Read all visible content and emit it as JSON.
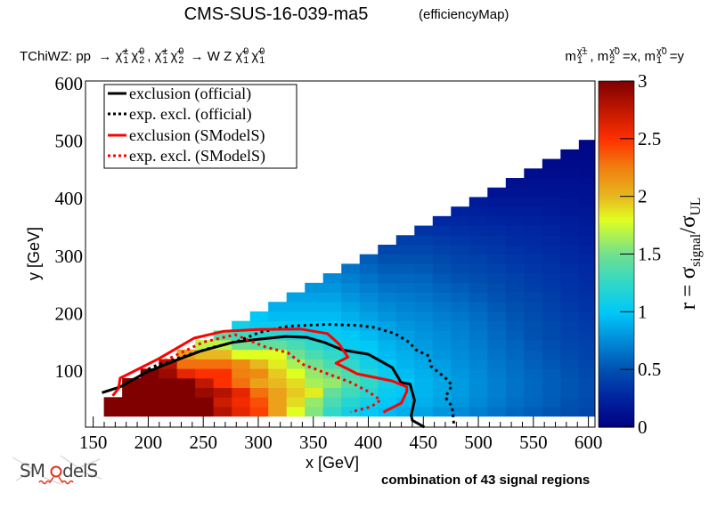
{
  "title": "CMS-SUS-16-039-ma5",
  "subtitle": "(efficiencyMap)",
  "process_label": [
    {
      "text": "TChiWZ: pp  → "
    },
    {
      "base": "χ̃",
      "sup": "±",
      "sub": "1"
    },
    {
      "base": "χ̃",
      "sup": "0",
      "sub": "2"
    },
    {
      "text": ", "
    },
    {
      "base": "χ̃",
      "sup": "±",
      "sub": "1"
    },
    {
      "base": "χ̃",
      "sup": "0",
      "sub": "2"
    },
    {
      "text": " → W Z "
    },
    {
      "base": "χ̃",
      "sup": "0",
      "sub": "1"
    },
    {
      "base": "χ̃",
      "sup": "0",
      "sub": "1"
    }
  ],
  "mass_label": [
    {
      "text": "m"
    },
    {
      "base": "",
      "sup": "χ̃±",
      "sub": "1"
    },
    {
      "text": ", m"
    },
    {
      "base": "",
      "sup": "χ̃0",
      "sub": "2"
    },
    {
      "text": "=x, m"
    },
    {
      "base": "",
      "sup": "χ̃0",
      "sub": "1"
    },
    {
      "text": "=y"
    }
  ],
  "footer": "combination of 43 signal regions",
  "logo_text": "SModelS",
  "chart_data": {
    "type": "heatmap",
    "xlabel": "x [GeV]",
    "ylabel": "y [GeV]",
    "zlabel": {
      "main": "r = σ",
      "sub1": "signal",
      "mid": "/σ",
      "sub2": "UL"
    },
    "xlim": [
      143,
      606
    ],
    "ylim": [
      2,
      605
    ],
    "zlim": [
      0,
      3
    ],
    "x_ticks": [
      "150",
      "200",
      "250",
      "300",
      "350",
      "400",
      "450",
      "500",
      "550",
      "600"
    ],
    "y_ticks": [
      "100",
      "200",
      "300",
      "400",
      "500",
      "600"
    ],
    "z_ticks": [
      "0",
      "0.5",
      "1",
      "1.5",
      "2",
      "2.5",
      "3"
    ],
    "palette_stops": [
      [
        0,
        "#000080"
      ],
      [
        0.25,
        "#0022a0"
      ],
      [
        0.5,
        "#0050b0"
      ],
      [
        0.75,
        "#008ad8"
      ],
      [
        1.0,
        "#00c8f8"
      ],
      [
        1.25,
        "#30d8c8"
      ],
      [
        1.5,
        "#70e090"
      ],
      [
        1.8,
        "#e0ff20"
      ],
      [
        2.0,
        "#e8b820"
      ],
      [
        2.25,
        "#f08010"
      ],
      [
        2.5,
        "#ff3000"
      ],
      [
        2.75,
        "#c01800"
      ],
      [
        3.0,
        "#800000"
      ]
    ],
    "bin_width": 16.6,
    "x_centers": [
      168,
      184.6,
      201.2,
      217.8,
      234.4,
      251,
      267.6,
      284.2,
      300.8,
      317.4,
      334,
      350.6,
      367.2,
      383.8,
      400.4,
      417,
      433.6,
      450.2,
      466.8,
      483.4,
      500,
      516.6,
      533.2,
      549.8,
      566.4,
      583,
      599.6
    ],
    "y_centers": [
      29.3,
      45.9,
      62.5,
      79.1,
      95.7,
      112.3,
      128.9,
      145.5,
      162.1,
      178.7,
      195.3,
      211.9,
      228.5,
      245.1,
      261.7,
      278.3,
      294.9,
      311.5,
      328.1,
      344.7,
      361.3,
      377.9,
      394.5,
      411.1,
      427.7,
      444.3,
      460.9,
      477.5,
      494.1
    ],
    "values_by_column": [
      [
        3.5,
        3.5
      ],
      [
        3.5,
        3.5,
        3.5,
        3.4
      ],
      [
        3.5,
        3.5,
        3.5,
        3.3,
        3.0
      ],
      [
        3.5,
        3.5,
        3.4,
        3.2,
        2.9,
        2.8
      ],
      [
        3.3,
        3.3,
        3.2,
        3.0,
        2.6,
        2.3,
        2.1
      ],
      [
        3.1,
        3.0,
        2.9,
        2.75,
        2.5,
        2.3,
        2.0,
        1.7
      ],
      [
        2.8,
        2.7,
        2.8,
        2.5,
        2.5,
        2.3,
        2.0,
        1.7,
        1.4
      ],
      [
        2.6,
        2.55,
        2.6,
        2.3,
        2.25,
        2.2,
        1.8,
        1.5,
        1.3,
        1.1
      ],
      [
        2.45,
        2.4,
        2.3,
        2.1,
        2.2,
        2.0,
        1.8,
        1.45,
        1.2,
        1.05,
        1.0
      ],
      [
        2.1,
        2.1,
        2.1,
        2.0,
        1.95,
        1.85,
        1.8,
        1.45,
        1.2,
        1.05,
        0.95,
        0.9
      ],
      [
        1.8,
        1.9,
        1.95,
        1.9,
        1.8,
        1.65,
        1.5,
        1.35,
        1.15,
        1.0,
        0.95,
        0.9,
        0.85
      ],
      [
        1.55,
        1.6,
        1.85,
        1.65,
        1.6,
        1.5,
        1.35,
        1.25,
        1.1,
        1.0,
        0.95,
        0.9,
        0.85,
        0.8
      ],
      [
        1.25,
        1.35,
        1.45,
        1.6,
        1.5,
        1.35,
        1.25,
        1.15,
        1.05,
        1.0,
        0.95,
        0.9,
        0.85,
        0.8,
        0.75
      ],
      [
        1.1,
        1.2,
        1.3,
        1.4,
        1.35,
        1.25,
        1.15,
        1.05,
        1.0,
        0.95,
        0.9,
        0.85,
        0.8,
        0.75,
        0.7,
        0.65
      ],
      [
        1.0,
        1.1,
        1.2,
        1.25,
        1.2,
        1.1,
        1.05,
        1.0,
        0.95,
        0.9,
        0.85,
        0.8,
        0.75,
        0.7,
        0.65,
        0.6,
        0.55
      ],
      [
        0.95,
        1.0,
        1.05,
        1.1,
        1.05,
        1.0,
        0.95,
        0.92,
        0.88,
        0.85,
        0.8,
        0.75,
        0.7,
        0.65,
        0.6,
        0.55,
        0.5,
        0.45
      ],
      [
        0.9,
        0.95,
        1.0,
        1.0,
        0.95,
        0.92,
        0.9,
        0.87,
        0.84,
        0.8,
        0.76,
        0.72,
        0.68,
        0.64,
        0.6,
        0.55,
        0.5,
        0.45,
        0.4
      ],
      [
        0.85,
        0.9,
        0.92,
        0.92,
        0.9,
        0.88,
        0.85,
        0.82,
        0.8,
        0.77,
        0.74,
        0.7,
        0.66,
        0.62,
        0.58,
        0.54,
        0.5,
        0.45,
        0.4,
        0.35
      ],
      [
        0.8,
        0.85,
        0.87,
        0.87,
        0.85,
        0.83,
        0.8,
        0.78,
        0.76,
        0.73,
        0.7,
        0.66,
        0.62,
        0.58,
        0.54,
        0.5,
        0.46,
        0.42,
        0.38,
        0.33,
        0.28
      ],
      [
        0.75,
        0.8,
        0.82,
        0.82,
        0.8,
        0.78,
        0.76,
        0.74,
        0.72,
        0.7,
        0.67,
        0.63,
        0.59,
        0.55,
        0.51,
        0.47,
        0.43,
        0.4,
        0.36,
        0.32,
        0.28,
        0.24
      ],
      [
        0.7,
        0.74,
        0.76,
        0.76,
        0.75,
        0.73,
        0.71,
        0.69,
        0.67,
        0.65,
        0.62,
        0.59,
        0.55,
        0.52,
        0.48,
        0.45,
        0.42,
        0.38,
        0.35,
        0.31,
        0.27,
        0.23,
        0.2
      ],
      [
        0.65,
        0.68,
        0.7,
        0.7,
        0.69,
        0.67,
        0.65,
        0.63,
        0.61,
        0.59,
        0.57,
        0.54,
        0.51,
        0.48,
        0.45,
        0.42,
        0.39,
        0.36,
        0.33,
        0.3,
        0.26,
        0.22,
        0.18,
        0.15
      ],
      [
        0.6,
        0.63,
        0.65,
        0.65,
        0.64,
        0.62,
        0.6,
        0.58,
        0.56,
        0.54,
        0.52,
        0.5,
        0.47,
        0.44,
        0.42,
        0.39,
        0.36,
        0.33,
        0.3,
        0.28,
        0.25,
        0.21,
        0.18,
        0.15,
        0.12
      ],
      [
        0.56,
        0.59,
        0.6,
        0.6,
        0.59,
        0.57,
        0.55,
        0.53,
        0.51,
        0.5,
        0.48,
        0.46,
        0.44,
        0.41,
        0.39,
        0.36,
        0.34,
        0.31,
        0.29,
        0.27,
        0.24,
        0.21,
        0.18,
        0.15,
        0.12,
        0.1
      ],
      [
        0.52,
        0.55,
        0.56,
        0.56,
        0.55,
        0.53,
        0.51,
        0.49,
        0.47,
        0.46,
        0.44,
        0.42,
        0.4,
        0.38,
        0.36,
        0.34,
        0.32,
        0.3,
        0.28,
        0.26,
        0.23,
        0.2,
        0.17,
        0.14,
        0.12,
        0.1,
        0.08
      ],
      [
        0.48,
        0.5,
        0.52,
        0.52,
        0.51,
        0.49,
        0.47,
        0.45,
        0.43,
        0.42,
        0.4,
        0.38,
        0.36,
        0.34,
        0.33,
        0.31,
        0.29,
        0.27,
        0.25,
        0.23,
        0.21,
        0.18,
        0.16,
        0.14,
        0.12,
        0.1,
        0.08,
        0.07
      ],
      [
        0.45,
        0.47,
        0.48,
        0.48,
        0.47,
        0.45,
        0.43,
        0.42,
        0.4,
        0.39,
        0.37,
        0.35,
        0.33,
        0.32,
        0.3,
        0.29,
        0.27,
        0.25,
        0.23,
        0.21,
        0.19,
        0.17,
        0.15,
        0.13,
        0.11,
        0.09,
        0.08,
        0.07,
        0.06
      ]
    ],
    "legend_position": "top-left",
    "series": [
      {
        "name": "exclusion (official)",
        "color": "#000000",
        "style": "solid",
        "points": [
          [
            158,
            62
          ],
          [
            174.5,
            72
          ],
          [
            198.6,
            98
          ],
          [
            225.5,
            118.6
          ],
          [
            247,
            134
          ],
          [
            276.6,
            149.6
          ],
          [
            298,
            154.7
          ],
          [
            325,
            160
          ],
          [
            343.8,
            158.4
          ],
          [
            360,
            149.6
          ],
          [
            376,
            136.7
          ],
          [
            400,
            129
          ],
          [
            421.8,
            105.7
          ],
          [
            429.8,
            79.8
          ],
          [
            438,
            77
          ],
          [
            442,
            48.8
          ],
          [
            439,
            23
          ],
          [
            440,
            14
          ],
          [
            451,
            2
          ]
        ]
      },
      {
        "name": "exp. excl. (official)",
        "color": "#000000",
        "style": "dotted",
        "points": [
          [
            200,
            103
          ],
          [
            208,
            110
          ],
          [
            230,
            124
          ],
          [
            255,
            139
          ],
          [
            282,
            152
          ],
          [
            301,
            167
          ],
          [
            327,
            178
          ],
          [
            363,
            181
          ],
          [
            392,
            179
          ],
          [
            406,
            175.5
          ],
          [
            424,
            165
          ],
          [
            437,
            150
          ],
          [
            443,
            137
          ],
          [
            455,
            126
          ],
          [
            457,
            108
          ],
          [
            470,
            88
          ],
          [
            476,
            75
          ],
          [
            470,
            54
          ],
          [
            476,
            38
          ],
          [
            477,
            23
          ],
          [
            478,
            2
          ]
        ]
      },
      {
        "name": "exclusion (SModelS)",
        "color": "#ff0000",
        "style": "solid",
        "points": [
          [
            167.7,
            56.6
          ],
          [
            173,
            69.5
          ],
          [
            174.5,
            87.6
          ],
          [
            182.5,
            95
          ],
          [
            209.4,
            121
          ],
          [
            241.7,
            157
          ],
          [
            268.5,
            169
          ],
          [
            300.8,
            172
          ],
          [
            338,
            173
          ],
          [
            362.7,
            165
          ],
          [
            373.4,
            147
          ],
          [
            381.5,
            124
          ],
          [
            370.7,
            113.5
          ],
          [
            386.8,
            98
          ],
          [
            389.5,
            95
          ],
          [
            421.8,
            82.5
          ],
          [
            435,
            72
          ],
          [
            435,
            64
          ],
          [
            430,
            44
          ],
          [
            413.7,
            28
          ]
        ]
      },
      {
        "name": "exp. excl. (SModelS)",
        "color": "#ff0000",
        "style": "dotted",
        "points": [
          [
            215,
            118
          ],
          [
            250,
            150
          ],
          [
            279,
            163
          ],
          [
            306,
            142
          ],
          [
            327,
            131.5
          ],
          [
            341,
            111
          ],
          [
            363,
            95
          ],
          [
            384,
            80
          ],
          [
            400,
            64
          ],
          [
            411,
            49
          ],
          [
            403,
            38
          ],
          [
            384,
            28
          ]
        ]
      }
    ]
  }
}
